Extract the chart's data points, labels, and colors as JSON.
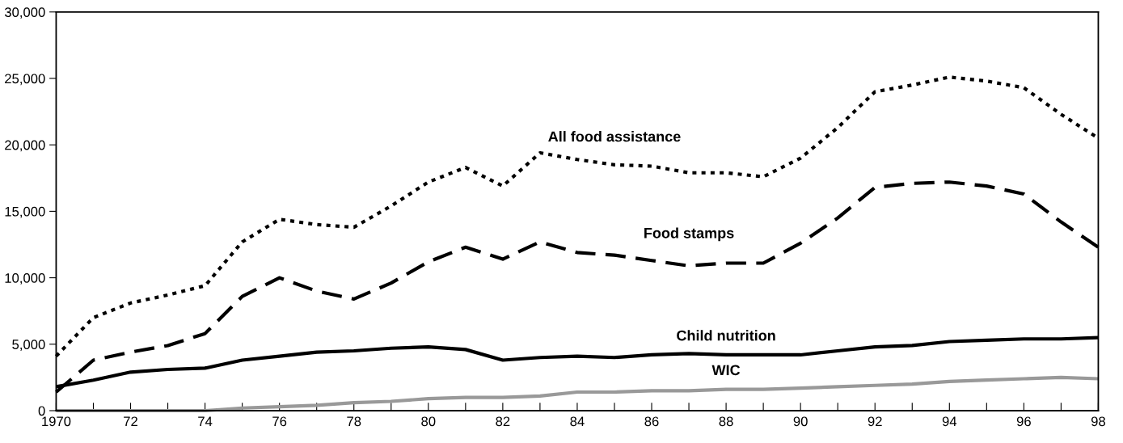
{
  "chart_data": {
    "type": "line",
    "x": [
      1970,
      1971,
      1972,
      1973,
      1974,
      1975,
      1976,
      1977,
      1978,
      1979,
      1980,
      1981,
      1982,
      1983,
      1984,
      1985,
      1986,
      1987,
      1988,
      1989,
      1990,
      1991,
      1992,
      1993,
      1994,
      1995,
      1996,
      1997,
      1998
    ],
    "series": [
      {
        "name": "All food assistance",
        "color": "#000000",
        "line_style": "dotted",
        "values": [
          4100,
          7000,
          8100,
          8700,
          9400,
          12700,
          14400,
          14000,
          13800,
          15400,
          17200,
          18300,
          16900,
          19400,
          18900,
          18500,
          18400,
          17900,
          17900,
          17600,
          19000,
          21300,
          24000,
          24500,
          25100,
          24800,
          24300,
          22300,
          20500
        ]
      },
      {
        "name": "Food stamps",
        "color": "#000000",
        "line_style": "dashed",
        "values": [
          1400,
          3800,
          4400,
          4900,
          5800,
          8600,
          10000,
          9000,
          8400,
          9600,
          11200,
          12300,
          11400,
          12700,
          11900,
          11700,
          11300,
          10900,
          11100,
          11100,
          12600,
          14500,
          16800,
          17100,
          17200,
          16900,
          16300,
          14200,
          12300
        ]
      },
      {
        "name": "Child nutrition",
        "color": "#000000",
        "line_style": "solid",
        "values": [
          1800,
          2300,
          2900,
          3100,
          3200,
          3800,
          4100,
          4400,
          4500,
          4700,
          4800,
          4600,
          3800,
          4000,
          4100,
          4000,
          4200,
          4300,
          4200,
          4200,
          4200,
          4500,
          4800,
          4900,
          5200,
          5300,
          5400,
          5400,
          5500
        ]
      },
      {
        "name": "WIC",
        "color": "#999999",
        "line_style": "solid",
        "values": [
          0,
          0,
          0,
          0,
          0,
          200,
          300,
          400,
          600,
          700,
          900,
          1000,
          1000,
          1100,
          1400,
          1400,
          1500,
          1500,
          1600,
          1600,
          1700,
          1800,
          1900,
          2000,
          2200,
          2300,
          2400,
          2500,
          2400
        ]
      }
    ],
    "xlim": [
      1970,
      1998
    ],
    "xticks": [
      {
        "value": 1970,
        "label": "1970"
      },
      {
        "value": 1971,
        "label": null
      },
      {
        "value": 1972,
        "label": "72"
      },
      {
        "value": 1973,
        "label": null
      },
      {
        "value": 1974,
        "label": "74"
      },
      {
        "value": 1975,
        "label": null
      },
      {
        "value": 1976,
        "label": "76"
      },
      {
        "value": 1977,
        "label": null
      },
      {
        "value": 1978,
        "label": "78"
      },
      {
        "value": 1979,
        "label": null
      },
      {
        "value": 1980,
        "label": "80"
      },
      {
        "value": 1981,
        "label": null
      },
      {
        "value": 1982,
        "label": "82"
      },
      {
        "value": 1983,
        "label": null
      },
      {
        "value": 1984,
        "label": "84"
      },
      {
        "value": 1985,
        "label": null
      },
      {
        "value": 1986,
        "label": "86"
      },
      {
        "value": 1987,
        "label": null
      },
      {
        "value": 1988,
        "label": "88"
      },
      {
        "value": 1989,
        "label": null
      },
      {
        "value": 1990,
        "label": "90"
      },
      {
        "value": 1991,
        "label": null
      },
      {
        "value": 1992,
        "label": "92"
      },
      {
        "value": 1993,
        "label": null
      },
      {
        "value": 1994,
        "label": "94"
      },
      {
        "value": 1995,
        "label": null
      },
      {
        "value": 1996,
        "label": "96"
      },
      {
        "value": 1997,
        "label": null
      },
      {
        "value": 1998,
        "label": "98"
      }
    ],
    "ylim": [
      0,
      30000
    ],
    "yticks": [
      {
        "value": 0,
        "label": "0"
      },
      {
        "value": 5000,
        "label": "5,000"
      },
      {
        "value": 10000,
        "label": "10,000"
      },
      {
        "value": 15000,
        "label": "15,000"
      },
      {
        "value": 20000,
        "label": "20,000"
      },
      {
        "value": 25000,
        "label": "25,000"
      },
      {
        "value": 30000,
        "label": "30,000"
      }
    ],
    "grid": false,
    "legend": false
  }
}
